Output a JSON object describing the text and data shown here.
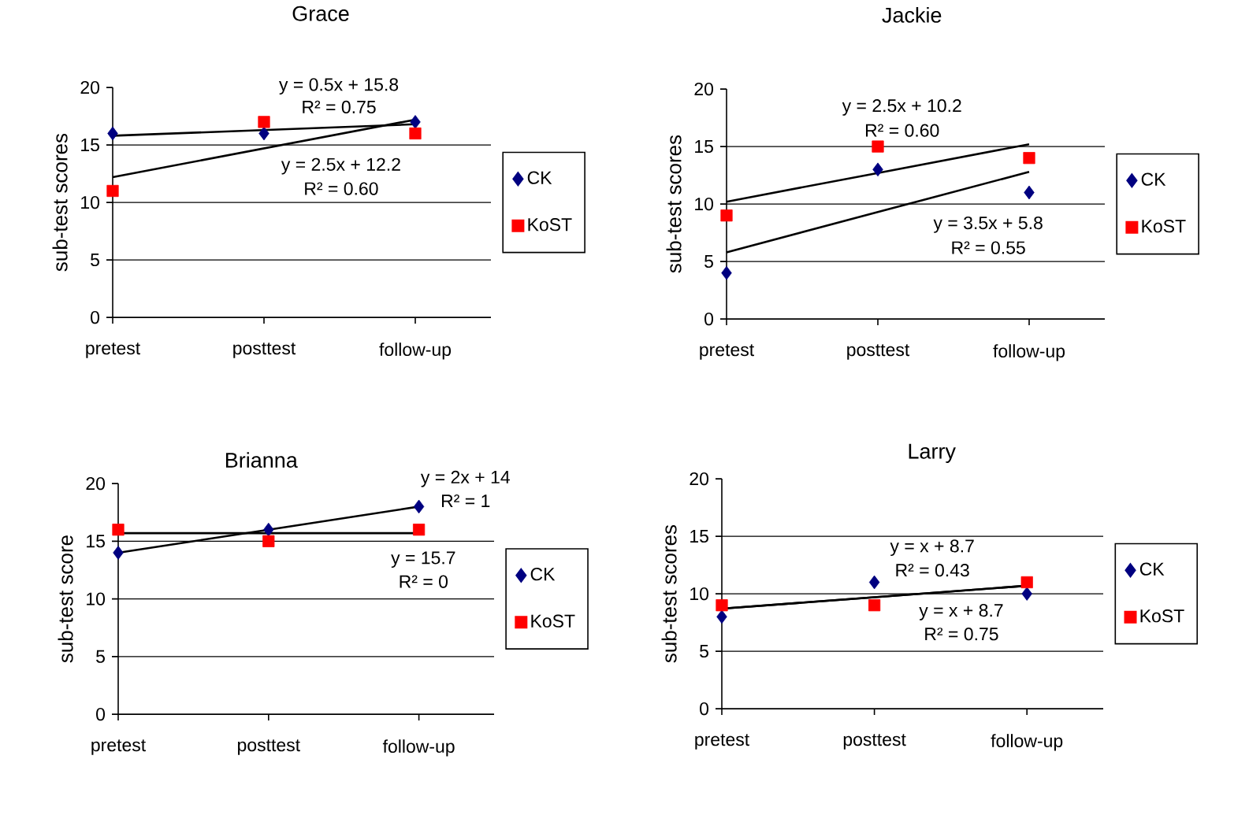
{
  "chart_data": [
    {
      "type": "scatter",
      "title": "Grace",
      "ylabel": "sub-test scores",
      "categories": [
        "pretest",
        "posttest",
        "follow-up"
      ],
      "ylim": [
        0,
        20
      ],
      "yticks": [
        0,
        5,
        10,
        15,
        20
      ],
      "grid": "y",
      "legend": "right",
      "series": [
        {
          "name": "CK",
          "color": "#000080",
          "marker": "diamond",
          "values": [
            16,
            16,
            17
          ]
        },
        {
          "name": "KoST",
          "color": "#ff0000",
          "marker": "square",
          "values": [
            11,
            17,
            16
          ]
        },
        {
          "type": "line",
          "color": "#000000",
          "values": [
            15.8,
            16.3,
            16.8
          ]
        },
        {
          "type": "line",
          "color": "#000000",
          "values": [
            12.2,
            14.7,
            17.2
          ]
        }
      ],
      "annotations": [
        "y = 0.5x + 15.8",
        "R² = 0.75",
        "y = 2.5x + 12.2",
        "R² = 0.60"
      ]
    },
    {
      "type": "scatter",
      "title": "Jackie",
      "ylabel": "sub-test scores",
      "categories": [
        "pretest",
        "posttest",
        "follow-up"
      ],
      "ylim": [
        0,
        20
      ],
      "yticks": [
        0,
        5,
        10,
        15,
        20
      ],
      "grid": "y",
      "legend": "right",
      "series": [
        {
          "name": "CK",
          "color": "#000080",
          "marker": "diamond",
          "values": [
            4,
            13,
            11
          ]
        },
        {
          "name": "KoST",
          "color": "#ff0000",
          "marker": "square",
          "values": [
            9,
            15,
            14
          ]
        },
        {
          "type": "line",
          "color": "#000000",
          "values": [
            10.2,
            12.7,
            15.2
          ]
        },
        {
          "type": "line",
          "color": "#000000",
          "values": [
            5.8,
            9.3,
            12.8
          ]
        }
      ],
      "annotations": [
        "y = 2.5x + 10.2",
        "R² = 0.60",
        "y = 3.5x + 5.8",
        "R² = 0.55"
      ]
    },
    {
      "type": "scatter",
      "title": "Brianna",
      "ylabel": "sub-test score",
      "categories": [
        "pretest",
        "posttest",
        "follow-up"
      ],
      "ylim": [
        0,
        20
      ],
      "yticks": [
        0,
        5,
        10,
        15,
        20
      ],
      "grid": "y",
      "legend": "right",
      "series": [
        {
          "name": "CK",
          "color": "#000080",
          "marker": "diamond",
          "values": [
            14,
            16,
            18
          ]
        },
        {
          "name": "KoST",
          "color": "#ff0000",
          "marker": "square",
          "values": [
            16,
            15,
            16
          ]
        },
        {
          "type": "line",
          "color": "#000000",
          "values": [
            14,
            16,
            18
          ]
        },
        {
          "type": "line",
          "color": "#000000",
          "values": [
            15.7,
            15.7,
            15.7
          ]
        }
      ],
      "annotations": [
        "y = 2x + 14",
        "R² = 1",
        "y = 15.7",
        "R² = 0"
      ]
    },
    {
      "type": "scatter",
      "title": "Larry",
      "ylabel": "sub-test scores",
      "categories": [
        "pretest",
        "posttest",
        "follow-up"
      ],
      "ylim": [
        0,
        20
      ],
      "yticks": [
        0,
        5,
        10,
        15,
        20
      ],
      "grid": "y",
      "legend": "right",
      "series": [
        {
          "name": "CK",
          "color": "#000080",
          "marker": "diamond",
          "values": [
            8,
            11,
            10
          ]
        },
        {
          "name": "KoST",
          "color": "#ff0000",
          "marker": "square",
          "values": [
            9,
            9,
            11
          ]
        },
        {
          "type": "line",
          "color": "#000000",
          "values": [
            8.7,
            9.7,
            10.7
          ]
        },
        {
          "type": "line",
          "color": "#000000",
          "values": [
            8.7,
            9.7,
            10.7
          ]
        }
      ],
      "annotations": [
        "y = x + 8.7",
        "R² = 0.43",
        "y = x + 8.7",
        "R² = 0.75"
      ]
    }
  ]
}
